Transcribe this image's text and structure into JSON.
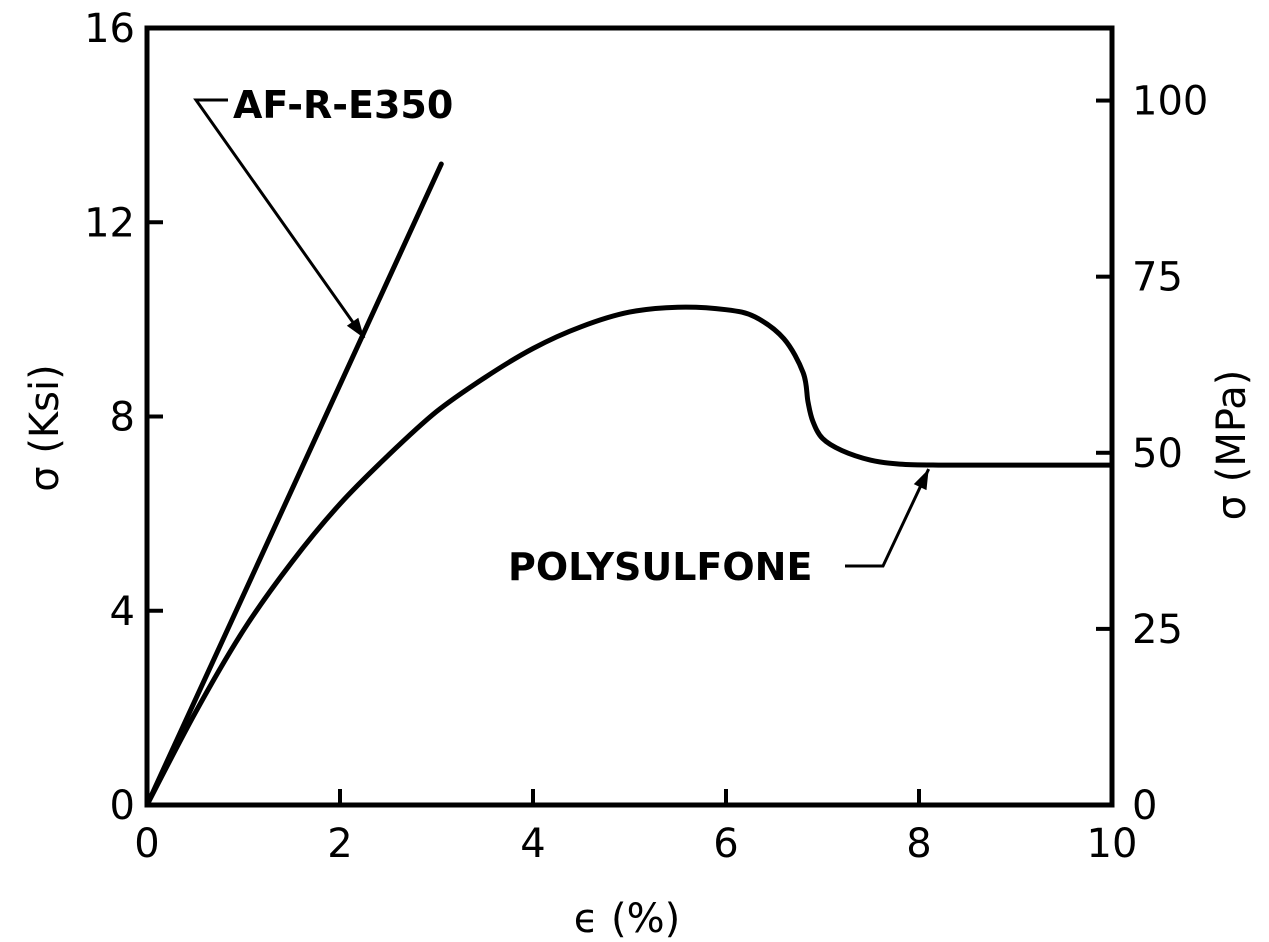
{
  "chart_data": {
    "type": "line",
    "title": "",
    "xlabel": "ϵ (%)",
    "ylabel": "σ (Ksi)",
    "ylabel_right": "σ (MPa)",
    "xlim": [
      0,
      10
    ],
    "ylim": [
      0,
      16
    ],
    "ylim_right": [
      0,
      110.3
    ],
    "x_ticks": [
      "0",
      "2",
      "4",
      "6",
      "8",
      "10"
    ],
    "y_ticks": [
      "0",
      "4",
      "8",
      "12",
      "16"
    ],
    "y_ticks_right": [
      "0",
      "25",
      "50",
      "75",
      "100"
    ],
    "grid": false,
    "series": [
      {
        "name": "AF-R-E350",
        "x": [
          0,
          3.05
        ],
        "y": [
          0,
          13.2
        ]
      },
      {
        "name": "POLYSULFONE",
        "x": [
          0,
          0.5,
          1.0,
          1.5,
          2.0,
          2.5,
          3.0,
          3.5,
          4.0,
          4.5,
          5.0,
          5.5,
          6.0,
          6.3,
          6.6,
          6.8,
          6.85,
          6.9,
          7.0,
          7.2,
          7.5,
          7.8,
          8.2,
          9.0,
          10.0
        ],
        "y": [
          0,
          1.9,
          3.6,
          5.0,
          6.2,
          7.2,
          8.1,
          8.8,
          9.4,
          9.85,
          10.15,
          10.25,
          10.2,
          10.05,
          9.6,
          8.9,
          8.3,
          7.9,
          7.55,
          7.3,
          7.1,
          7.02,
          7.0,
          7.0,
          7.0
        ]
      }
    ],
    "annotations": [
      {
        "text": "AF-R-E350",
        "target_series": "AF-R-E350"
      },
      {
        "text": "POLYSULFONE",
        "target_series": "POLYSULFONE"
      }
    ]
  }
}
